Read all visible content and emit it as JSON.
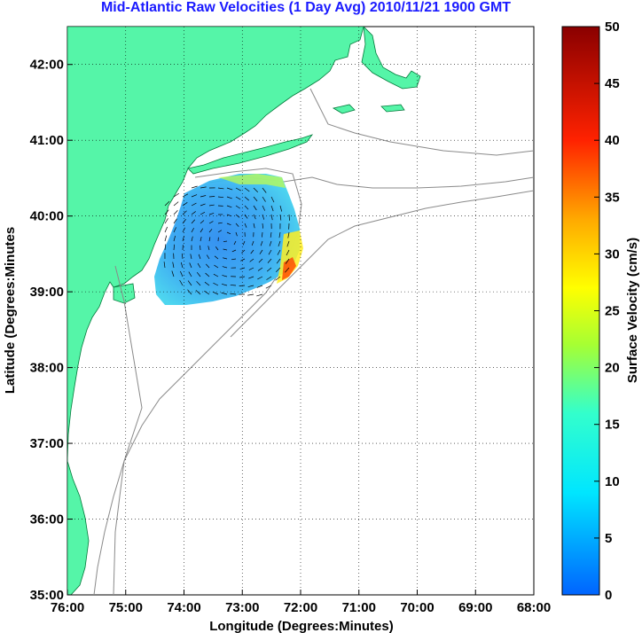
{
  "title": "Mid-Atlantic Raw Velocities (1 Day Avg) 2010/11/21 1900 GMT",
  "x_axis": {
    "label": "Longitude (Degrees:Minutes)",
    "ticks": [
      "76:00",
      "75:00",
      "74:00",
      "73:00",
      "72:00",
      "71:00",
      "70:00",
      "69:00",
      "68:00"
    ]
  },
  "y_axis": {
    "label": "Latitude (Degrees:Minutes",
    "ticks": [
      "42:00",
      "41:00",
      "40:00",
      "39:00",
      "38:00",
      "37:00",
      "36:00",
      "35:00"
    ]
  },
  "colorbar": {
    "label": "Surface Velocity (cm/s)",
    "ticks": [
      "50",
      "45",
      "40",
      "35",
      "30",
      "25",
      "20",
      "15",
      "10",
      "5",
      "0"
    ]
  },
  "colors": {
    "title": "#1a1aff",
    "land": "#55f5a8",
    "bathymetry": "#8a8a8a",
    "grid": "#000000"
  },
  "map_extent": {
    "lon_west": -76,
    "lon_east": -68,
    "lat_south": 35,
    "lat_north": 42.5
  },
  "grid": "dotted"
}
